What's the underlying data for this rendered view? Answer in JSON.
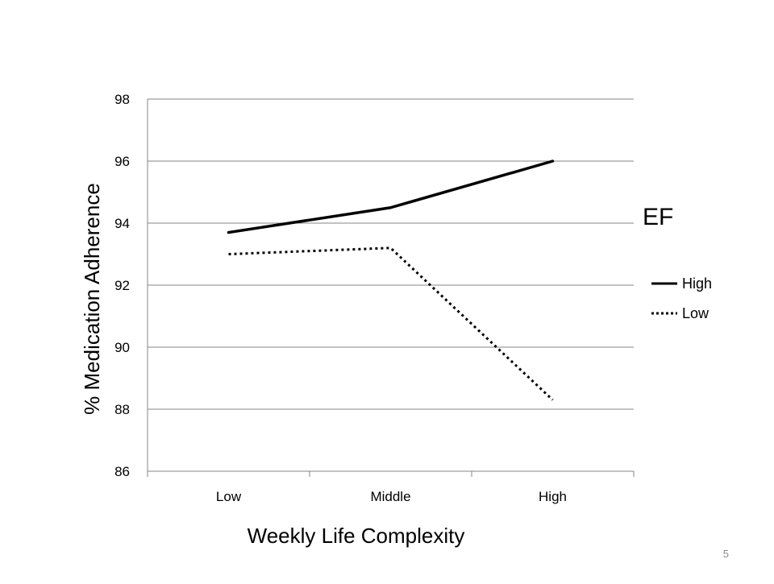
{
  "chart_data": {
    "type": "line",
    "categories": [
      "Low",
      "Middle",
      "High"
    ],
    "series": [
      {
        "name": "High",
        "values": [
          93.7,
          94.5,
          96.0
        ],
        "line_style": "solid",
        "color": "#000000"
      },
      {
        "name": "Low",
        "values": [
          93.0,
          93.2,
          88.3
        ],
        "line_style": "dotted",
        "color": "#000000"
      }
    ],
    "xlabel": "Weekly Life Complexity",
    "ylabel": "% Medication Adherence",
    "ylim": [
      86,
      98
    ],
    "yticks": [
      86,
      88,
      90,
      92,
      94,
      96,
      98
    ],
    "grid": true,
    "legend_title": "EF",
    "legend_position": "right"
  },
  "slide": {
    "page_number": "5"
  }
}
